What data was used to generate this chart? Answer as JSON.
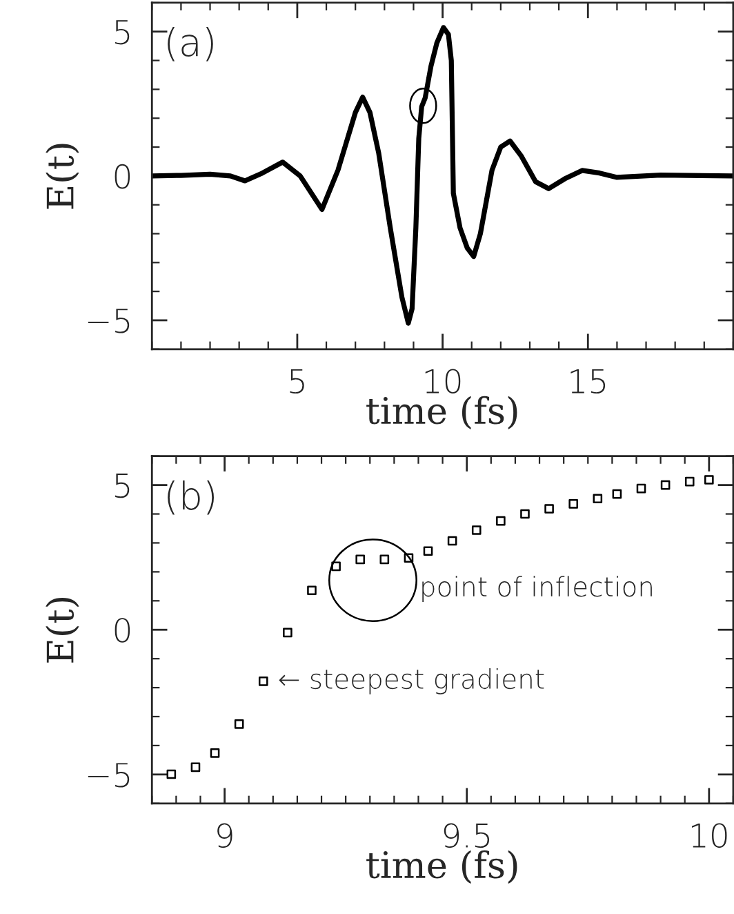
{
  "chart_data": [
    {
      "type": "line",
      "xlabel": "time (fs)",
      "ylabel": "E(t)",
      "annotations": [
        "(a)"
      ],
      "x": [
        0,
        1,
        2,
        2.7,
        3.2,
        3.8,
        4.5,
        5.1,
        5.85,
        6.4,
        7.0,
        7.25,
        7.5,
        7.8,
        8.2,
        8.6,
        8.82,
        8.95,
        9.08,
        9.18,
        9.28,
        9.4,
        9.6,
        9.8,
        10.03,
        10.2,
        10.3,
        10.37,
        10.6,
        10.85,
        11.07,
        11.3,
        11.7,
        12.0,
        12.32,
        12.7,
        13.2,
        13.65,
        14.2,
        14.8,
        15.4,
        16,
        17.5,
        20
      ],
      "series": [
        {
          "color": "#000000",
          "values": [
            0,
            0.02,
            0.06,
            0,
            -0.17,
            0.1,
            0.48,
            0,
            -1.16,
            0.2,
            2.2,
            2.73,
            2.2,
            0.8,
            -1.8,
            -4.2,
            -5.1,
            -4.6,
            -1.8,
            1.3,
            2.4,
            2.7,
            3.8,
            4.6,
            5.14,
            4.9,
            4.0,
            -0.6,
            -1.8,
            -2.5,
            -2.79,
            -2.0,
            0.2,
            1.0,
            1.21,
            0.7,
            -0.2,
            -0.44,
            -0.1,
            0.19,
            0.1,
            -0.05,
            0.03,
            0
          ]
        }
      ],
      "xlim": [
        0,
        20
      ],
      "xticks": [
        5,
        10,
        15
      ],
      "ylim": [
        -6,
        6
      ],
      "yticks": [
        -5,
        0,
        5
      ],
      "grid": false,
      "legend": false,
      "marker": "none",
      "line_style": "solid"
    },
    {
      "type": "scatter",
      "xlabel": "time (fs)",
      "ylabel": "E(t)",
      "annotations": [
        "(b)",
        {
          "text": "point of inflection",
          "x": 9.33,
          "y": 2.43
        },
        {
          "text": "← steepest gradient",
          "x": 9.08,
          "y": -1.78
        }
      ],
      "x": [
        8.89,
        8.94,
        8.98,
        9.03,
        9.08,
        9.13,
        9.18,
        9.23,
        9.28,
        9.33,
        9.38,
        9.42,
        9.47,
        9.52,
        9.57,
        9.62,
        9.67,
        9.72,
        9.77,
        9.81,
        9.86,
        9.91,
        9.96,
        10.0
      ],
      "series": [
        {
          "color": "#000000",
          "values": [
            -4.99,
            -4.75,
            -4.26,
            -3.26,
            -1.78,
            -0.1,
            1.36,
            2.19,
            2.43,
            2.43,
            2.48,
            2.72,
            3.07,
            3.44,
            3.76,
            4.0,
            4.18,
            4.35,
            4.53,
            4.69,
            4.88,
            5.0,
            5.12,
            5.18
          ]
        }
      ],
      "xlim": [
        8.85,
        10.05
      ],
      "xticks": [
        9,
        9.5,
        10
      ],
      "ylim": [
        -6,
        6
      ],
      "yticks": [
        -5,
        0,
        5
      ],
      "grid": false,
      "legend": false,
      "marker": "square"
    }
  ]
}
